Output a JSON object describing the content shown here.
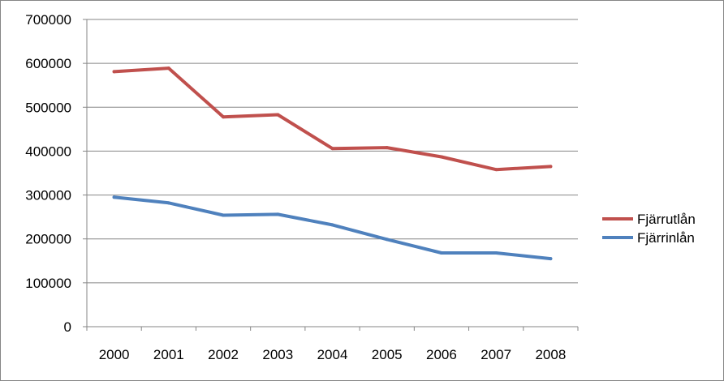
{
  "chart_data": {
    "type": "line",
    "title": "",
    "xlabel": "",
    "ylabel": "",
    "categories": [
      "2000",
      "2001",
      "2002",
      "2003",
      "2004",
      "2005",
      "2006",
      "2007",
      "2008"
    ],
    "ylim": [
      0,
      700000
    ],
    "yticks": [
      "0",
      "100000",
      "200000",
      "300000",
      "400000",
      "500000",
      "600000",
      "700000"
    ],
    "grid": true,
    "legend_position": "right",
    "series": [
      {
        "name": "Fjärrutlån",
        "color": "#C0504D",
        "values": [
          581000,
          589000,
          478000,
          483000,
          406000,
          408000,
          387000,
          358000,
          365000
        ]
      },
      {
        "name": "Fjärrinlån",
        "color": "#4F81BD",
        "values": [
          295000,
          282000,
          254000,
          256000,
          232000,
          199000,
          168000,
          168000,
          155000
        ]
      }
    ]
  }
}
